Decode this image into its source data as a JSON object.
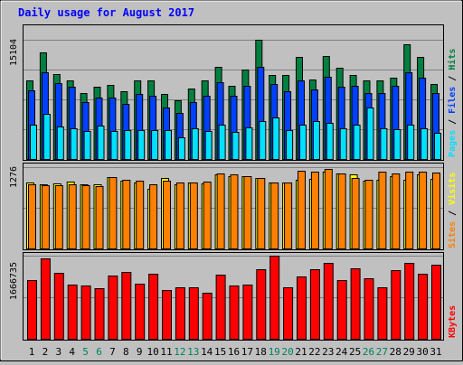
{
  "chart_data": [
    {
      "type": "bar",
      "title": "Daily usage for August 2017",
      "panel": "hits-files-pages",
      "ymax_label": "15104",
      "legend": [
        "Pages",
        "Files",
        "Hits"
      ],
      "categories": [
        "1",
        "2",
        "3",
        "4",
        "5",
        "6",
        "7",
        "8",
        "9",
        "10",
        "11",
        "12",
        "13",
        "14",
        "15",
        "16",
        "17",
        "18",
        "19",
        "20",
        "21",
        "22",
        "23",
        "24",
        "25",
        "26",
        "27",
        "28",
        "29",
        "30",
        "31"
      ],
      "weekend_days": [
        "5",
        "6",
        "12",
        "13",
        "19",
        "20",
        "26",
        "27"
      ],
      "series": [
        {
          "name": "Hits",
          "values": [
            9900,
            13500,
            10800,
            10000,
            8400,
            9200,
            9400,
            8600,
            9900,
            10000,
            8200,
            7400,
            8900,
            10000,
            11700,
            9300,
            11300,
            15100,
            10600,
            10600,
            12900,
            10100,
            13100,
            11500,
            10600,
            9900,
            10000,
            10300,
            14500,
            12900,
            9500
          ]
        },
        {
          "name": "Files",
          "values": [
            8700,
            11000,
            9600,
            9200,
            7200,
            7800,
            7800,
            7000,
            8200,
            8000,
            6500,
            5800,
            7200,
            8000,
            9700,
            8000,
            9300,
            11700,
            9500,
            8600,
            10000,
            8800,
            10400,
            9200,
            9300,
            8300,
            8300,
            9300,
            11000,
            10300,
            8300
          ]
        },
        {
          "name": "Pages",
          "values": [
            4300,
            5700,
            4100,
            3900,
            3600,
            4200,
            3600,
            3700,
            3700,
            3700,
            3700,
            2800,
            3900,
            3600,
            4400,
            3400,
            4000,
            4800,
            5300,
            3700,
            4300,
            4800,
            4600,
            3900,
            4300,
            6500,
            3900,
            3800,
            4300,
            3900,
            3300
          ]
        }
      ]
    },
    {
      "type": "bar",
      "panel": "visits-sites",
      "ymax_label": "1276",
      "legend": [
        "Sites",
        "Visits"
      ],
      "categories": [
        "1",
        "2",
        "3",
        "4",
        "5",
        "6",
        "7",
        "8",
        "9",
        "10",
        "11",
        "12",
        "13",
        "14",
        "15",
        "16",
        "17",
        "18",
        "19",
        "20",
        "21",
        "22",
        "23",
        "24",
        "25",
        "26",
        "27",
        "28",
        "29",
        "30",
        "31"
      ],
      "series": [
        {
          "name": "Visits",
          "values": [
            1030,
            1010,
            1020,
            1050,
            1000,
            1010,
            1120,
            1060,
            1040,
            930,
            1100,
            1010,
            1040,
            1020,
            1160,
            1140,
            1140,
            1110,
            1040,
            1030,
            1080,
            1090,
            1200,
            1180,
            1160,
            1070,
            1080,
            1130,
            1080,
            1160,
            1090
          ]
        },
        {
          "name": "Sites",
          "values": [
            1010,
            990,
            990,
            1000,
            990,
            980,
            1120,
            1080,
            1060,
            1000,
            1060,
            1040,
            1030,
            1050,
            1180,
            1160,
            1140,
            1110,
            1040,
            1030,
            1220,
            1200,
            1250,
            1170,
            1100,
            1080,
            1200,
            1170,
            1200,
            1210,
            1190
          ]
        }
      ]
    },
    {
      "type": "bar",
      "panel": "kbytes",
      "ymax_label": "1666735",
      "legend": [
        "KBytes"
      ],
      "categories": [
        "1",
        "2",
        "3",
        "4",
        "5",
        "6",
        "7",
        "8",
        "9",
        "10",
        "11",
        "12",
        "13",
        "14",
        "15",
        "16",
        "17",
        "18",
        "19",
        "20",
        "21",
        "22",
        "23",
        "24",
        "25",
        "26",
        "27",
        "28",
        "29",
        "30",
        "31"
      ],
      "series": [
        {
          "name": "KBytes",
          "values": [
            1180000,
            1620000,
            1330000,
            1090000,
            1060000,
            1020000,
            1260000,
            1340000,
            1100000,
            1300000,
            970000,
            1040000,
            1040000,
            920000,
            1290000,
            1070000,
            1090000,
            1400000,
            1660000,
            1040000,
            1250000,
            1390000,
            1520000,
            1180000,
            1410000,
            1220000,
            1040000,
            1370000,
            1520000,
            1300000,
            1480000
          ]
        }
      ]
    }
  ],
  "colors": {
    "hits": "#008040",
    "files": "#0040ff",
    "pages": "#00e0ff",
    "visits": "#ffff00",
    "sites": "#ff8000",
    "kbytes": "#ff0000",
    "title": "#0000ff",
    "weekend": "#00805c",
    "weekday": "#000000"
  }
}
